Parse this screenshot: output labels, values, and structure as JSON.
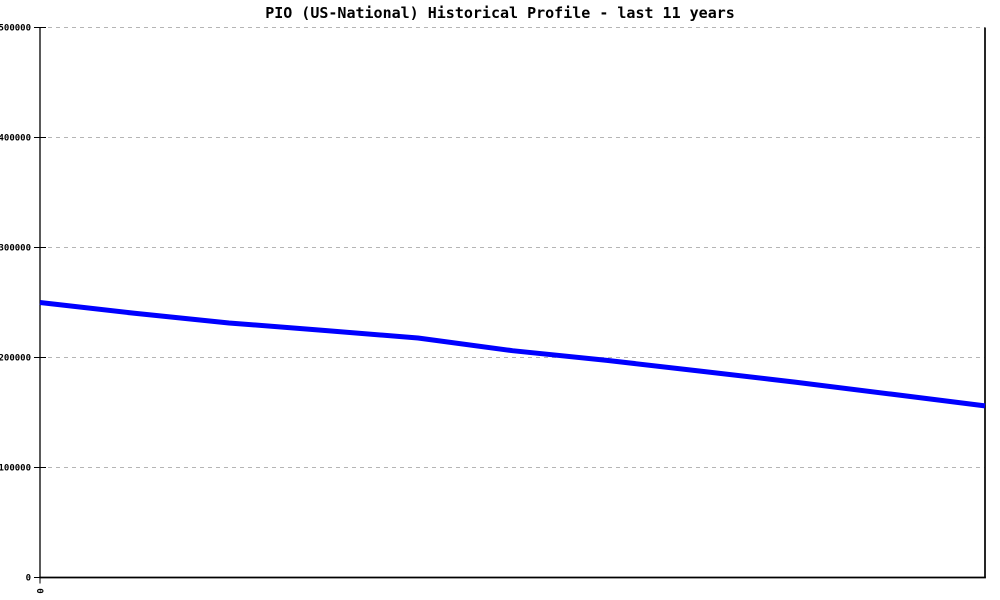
{
  "chart_data": {
    "type": "line",
    "title": "PIO (US-National) Historical Profile - last 11 years",
    "xlabel": "",
    "ylabel": "",
    "ylim": [
      0,
      500000
    ],
    "yticks": [
      0,
      100000,
      200000,
      300000,
      400000,
      500000
    ],
    "ytick_labels": [
      "0",
      "100000",
      "200000",
      "300000",
      "400000",
      "500000"
    ],
    "x_first_tick_label": "0",
    "x_tick_label_rotation_deg": 90,
    "grid": "horizontal-dashed",
    "legend_position": "none",
    "series": [
      {
        "name": "PIO (US-National)",
        "x": [
          0,
          1,
          2,
          3,
          4,
          5,
          6,
          7,
          8,
          9,
          10
        ],
        "values": [
          250000,
          240200,
          231400,
          224700,
          217700,
          206200,
          197400,
          187500,
          177500,
          166800,
          156000
        ],
        "color": "#0000ff"
      }
    ],
    "colors": {
      "line": "#0000ff",
      "grid": "#b5b5b5",
      "axis": "#000000",
      "background": "#ffffff",
      "text": "#000000"
    }
  }
}
